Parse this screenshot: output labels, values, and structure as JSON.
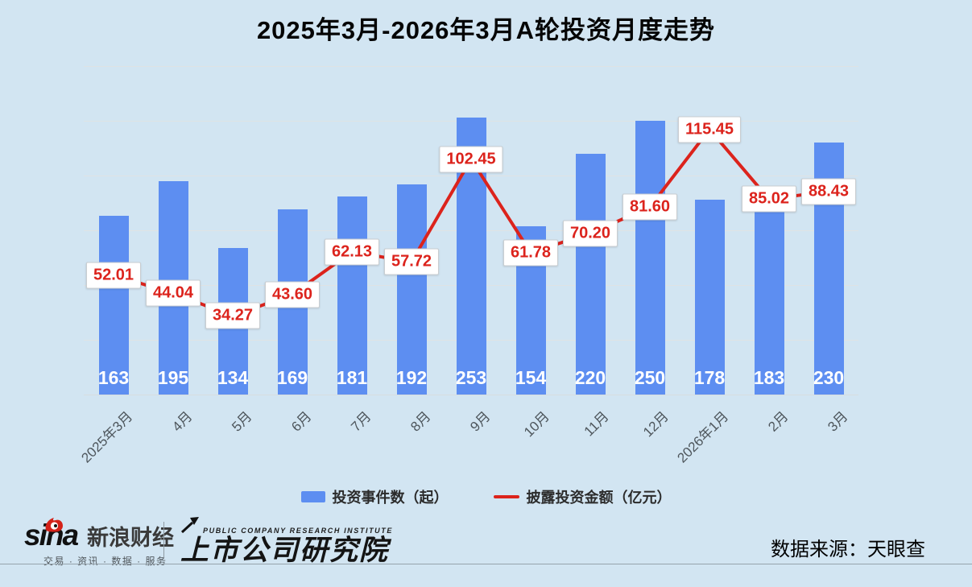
{
  "title": "2025年3月-2026年3月A轮投资月度走势",
  "chart_data": {
    "type": "bar",
    "title": "2025年3月-2026年3月A轮投资月度走势",
    "categories": [
      "2025年3月",
      "4月",
      "5月",
      "6月",
      "7月",
      "8月",
      "9月",
      "10月",
      "11月",
      "12月",
      "2026年1月",
      "2月",
      "3月"
    ],
    "series": [
      {
        "name": "投资事件数（起）",
        "type": "bar",
        "values": [
          163,
          195,
          134,
          169,
          181,
          192,
          253,
          154,
          220,
          250,
          178,
          183,
          230
        ],
        "color": "#5d8ef1",
        "axis": {
          "min": 0,
          "max": 300,
          "grid_step": 50
        }
      },
      {
        "name": "披露投资金额（亿元）",
        "type": "line",
        "values": [
          52.01,
          44.04,
          34.27,
          43.6,
          62.13,
          57.72,
          102.45,
          61.78,
          70.2,
          81.6,
          115.45,
          85.02,
          88.43
        ],
        "color": "#dc231c",
        "axis": {
          "min": 0,
          "max": 143
        }
      }
    ],
    "grid": "on",
    "legend_position": "bottom",
    "value_label_color_bar": "#ffffff",
    "value_label_color_line": "#dc231c"
  },
  "footer": {
    "sina_text": "sina",
    "sina_brand": "新浪财经",
    "sina_tagline": "交易 · 资讯 · 数据 · 服务",
    "pcri_en": "PUBLIC COMPANY RESEARCH INSTITUTE",
    "pcri_cn": "上市公司研究院",
    "source": "数据来源：天眼查"
  }
}
